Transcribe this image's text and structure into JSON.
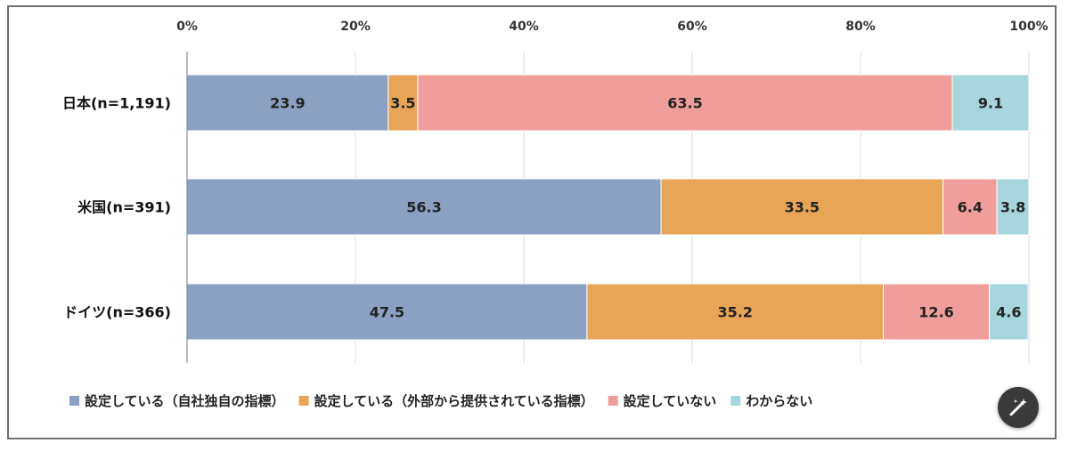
{
  "chart_data": {
    "type": "bar",
    "orientation": "horizontal",
    "stacked": true,
    "xlim": [
      0,
      100
    ],
    "x_ticks": [
      "0%",
      "20%",
      "40%",
      "60%",
      "80%",
      "100%"
    ],
    "grid": true,
    "legend_position": "bottom",
    "categories": [
      "日本(n=1,191)",
      "米国(n=391)",
      "ドイツ(n=366)"
    ],
    "series": [
      {
        "name": "設定している（自社独自の指標）",
        "color": "#8ba0c2",
        "values": [
          23.9,
          56.3,
          47.5
        ]
      },
      {
        "name": "設定している（外部から提供されている指標）",
        "color": "#e8a557",
        "values": [
          3.5,
          33.5,
          35.2
        ]
      },
      {
        "name": "設定していない",
        "color": "#f09e9c",
        "values": [
          63.5,
          6.4,
          12.6
        ]
      },
      {
        "name": "わからない",
        "color": "#a7d6dc",
        "values": [
          9.1,
          3.8,
          4.6
        ]
      }
    ]
  },
  "overlay": {
    "edit_icon": "edit-sparkle-icon"
  }
}
